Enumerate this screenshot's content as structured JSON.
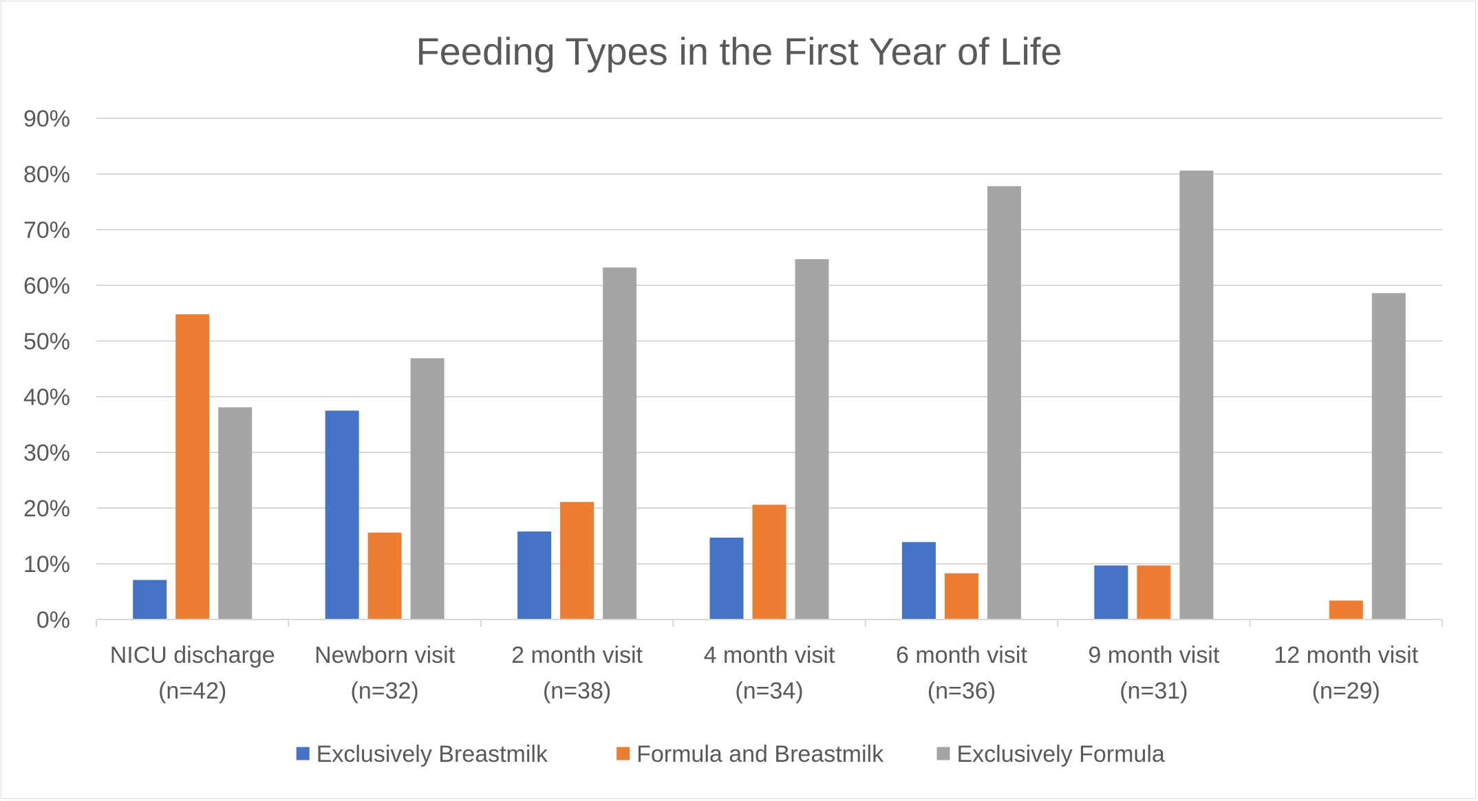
{
  "chart_data": {
    "type": "bar",
    "title": "Feeding Types in the First Year of Life",
    "xlabel": "",
    "ylabel": "",
    "ylim": [
      0,
      90
    ],
    "yticks": [
      "0%",
      "10%",
      "20%",
      "30%",
      "40%",
      "50%",
      "60%",
      "70%",
      "80%",
      "90%"
    ],
    "grid": true,
    "legend_position": "bottom",
    "categories": [
      [
        "NICU discharge",
        "(n=42)"
      ],
      [
        "Newborn visit",
        "(n=32)"
      ],
      [
        "2 month visit",
        "(n=38)"
      ],
      [
        "4 month visit",
        "(n=34)"
      ],
      [
        "6 month visit",
        "(n=36)"
      ],
      [
        "9 month visit",
        "(n=31)"
      ],
      [
        "12 month visit",
        "(n=29)"
      ]
    ],
    "series": [
      {
        "name": "Exclusively Breastmilk",
        "color": "#4472c4",
        "values": [
          7.1,
          37.5,
          15.8,
          14.7,
          13.9,
          9.7,
          0
        ]
      },
      {
        "name": "Formula and Breastmilk",
        "color": "#ed7d31",
        "values": [
          54.8,
          15.6,
          21.1,
          20.6,
          8.3,
          9.7,
          3.4
        ]
      },
      {
        "name": "Exclusively Formula",
        "color": "#a5a5a5",
        "values": [
          38.1,
          46.9,
          63.2,
          64.7,
          77.8,
          80.6,
          58.6
        ]
      }
    ]
  }
}
